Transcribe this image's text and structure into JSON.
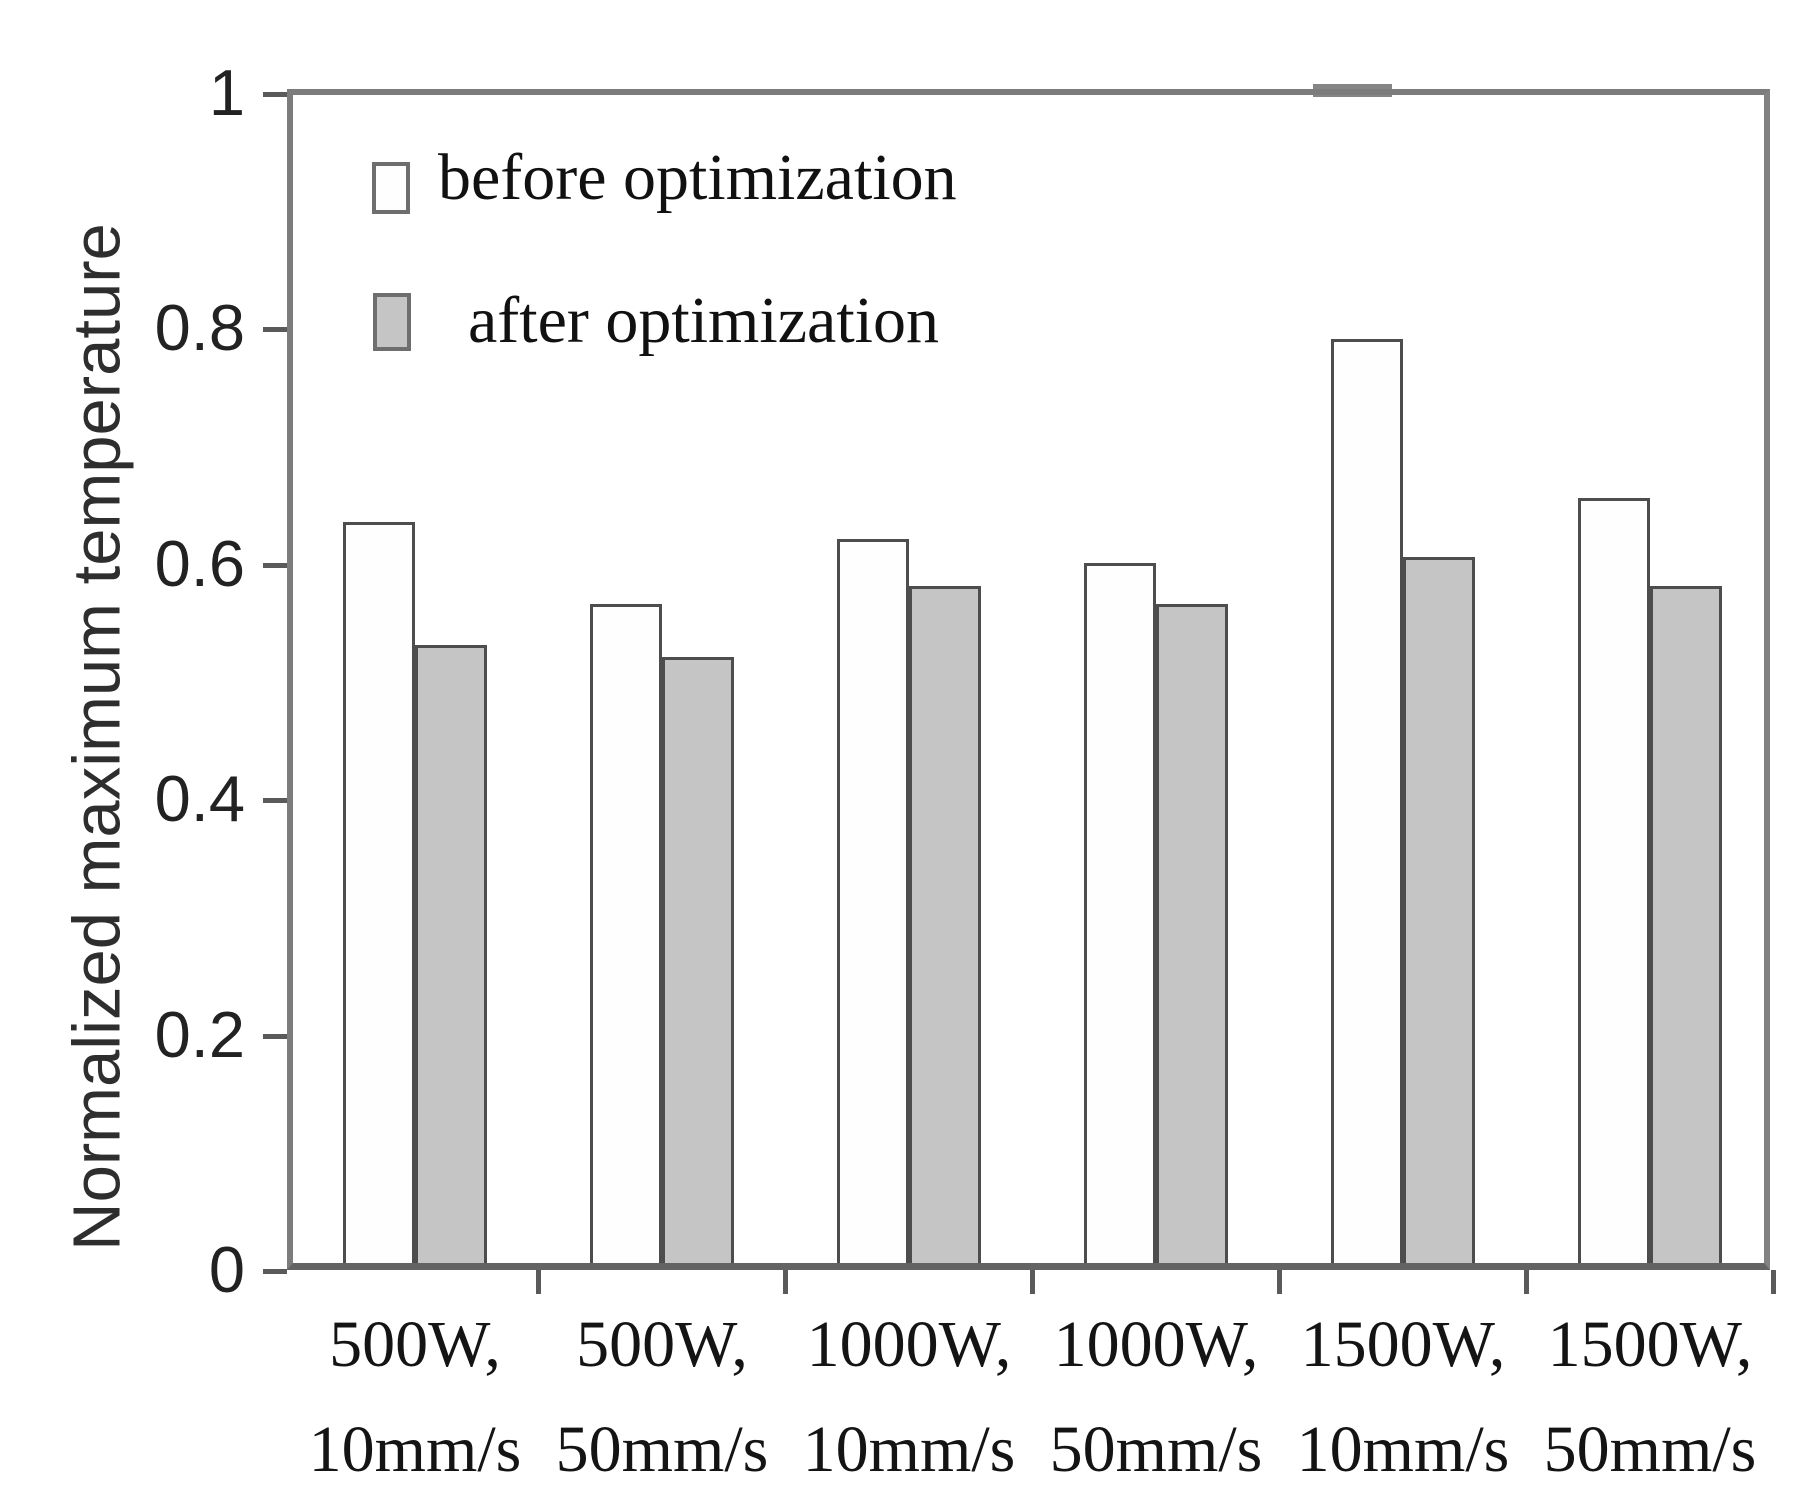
{
  "figure": {
    "background": "#ffffff"
  },
  "y_axis": {
    "title": "Normalized maximum temperature",
    "tick_labels": [
      "1",
      "0.8",
      "0.6",
      "0.4",
      "0.2",
      "0"
    ],
    "tick_values": [
      1,
      0.8,
      0.6,
      0.4,
      0.2,
      0
    ]
  },
  "legend": {
    "items": [
      {
        "label": "before optimization",
        "swatch": "white"
      },
      {
        "label": "after optimization",
        "swatch": "gray"
      }
    ]
  },
  "chart_data": {
    "type": "bar",
    "title": "",
    "xlabel": "",
    "ylabel": "Normalized maximum temperature",
    "ylim": [
      0,
      1
    ],
    "yticks": [
      0,
      0.2,
      0.4,
      0.6,
      0.8,
      1
    ],
    "grid": false,
    "legend_position": "upper-left-inside",
    "categories": [
      "500W, 10mm/s",
      "500W, 50mm/s",
      "1000W, 10mm/s",
      "1000W, 50mm/s",
      "1500W, 10mm/s",
      "1500W, 50mm/s"
    ],
    "categories_two_line": [
      [
        "500W,",
        "10mm/s"
      ],
      [
        "500W,",
        "50mm/s"
      ],
      [
        "1000W,",
        "10mm/s"
      ],
      [
        "1000W,",
        "50mm/s"
      ],
      [
        "1500W,",
        "10mm/s"
      ],
      [
        "1500W,",
        "50mm/s"
      ]
    ],
    "series": [
      {
        "name": "before optimization",
        "fill": "#fefefe",
        "values": [
          0.635,
          0.565,
          0.62,
          0.6,
          0.79,
          0.655
        ]
      },
      {
        "name": "after optimization",
        "fill": "#c5c5c5",
        "values": [
          0.53,
          0.52,
          0.58,
          0.565,
          0.605,
          0.58
        ]
      }
    ],
    "colors": {
      "bar_border": "#4d4d4d",
      "axis": "#7c7c7c",
      "text": "#1a1a1a"
    }
  }
}
